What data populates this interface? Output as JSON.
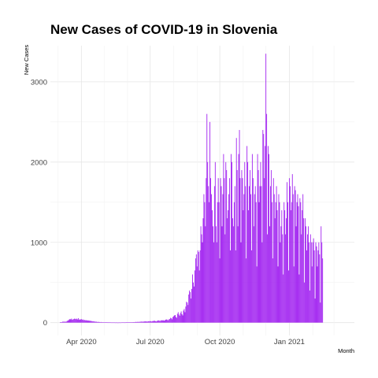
{
  "chart_data": {
    "type": "bar",
    "title": "New Cases of COVID-19 in Slovenia",
    "xlabel": "Month",
    "ylabel": "New Cases",
    "bar_color": "#a020f0",
    "x_start": "2020-03-04",
    "x_range": [
      "2020-02-20",
      "2021-03-28"
    ],
    "ylim": [
      -160,
      3450
    ],
    "y_ticks": [
      0,
      1000,
      2000,
      3000
    ],
    "x_ticks": [
      {
        "date": "2020-04-01",
        "label": "Apr 2020"
      },
      {
        "date": "2020-07-01",
        "label": "Jul 2020"
      },
      {
        "date": "2020-10-01",
        "label": "Oct 2020"
      },
      {
        "date": "2021-01-01",
        "label": "Jan 2021"
      }
    ],
    "grid": true,
    "values": [
      6,
      6,
      6,
      12,
      12,
      12,
      12,
      12,
      12,
      20,
      25,
      30,
      40,
      45,
      40,
      50,
      35,
      40,
      45,
      50,
      48,
      42,
      50,
      40,
      55,
      35,
      42,
      38,
      45,
      35,
      40,
      30,
      35,
      28,
      32,
      25,
      30,
      22,
      28,
      20,
      25,
      18,
      20,
      15,
      18,
      12,
      15,
      10,
      12,
      8,
      10,
      8,
      8,
      6,
      8,
      6,
      6,
      5,
      5,
      4,
      5,
      3,
      4,
      2,
      3,
      2,
      3,
      2,
      2,
      2,
      2,
      2,
      2,
      1,
      2,
      1,
      1,
      1,
      2,
      1,
      2,
      2,
      3,
      2,
      3,
      2,
      2,
      3,
      4,
      3,
      4,
      3,
      5,
      4,
      5,
      6,
      6,
      7,
      6,
      8,
      9,
      8,
      10,
      8,
      11,
      9,
      12,
      12,
      14,
      10,
      12,
      15,
      13,
      16,
      14,
      12,
      15,
      18,
      15,
      20,
      17,
      14,
      18,
      22,
      20,
      24,
      18,
      15,
      22,
      25,
      28,
      24,
      20,
      28,
      30,
      26,
      32,
      25,
      24,
      35,
      38,
      40,
      32,
      30,
      42,
      45,
      60,
      55,
      42,
      70,
      80,
      90,
      95,
      70,
      60,
      110,
      130,
      100,
      85,
      120,
      140,
      105,
      90,
      150,
      170,
      130,
      200,
      260,
      250,
      220,
      350,
      400,
      380,
      300,
      420,
      600,
      500,
      450,
      650,
      800,
      850,
      700,
      900,
      880,
      650,
      900,
      1200,
      1100,
      1000,
      1300,
      1600,
      1500,
      1200,
      1800,
      2600,
      2000,
      1700,
      1500,
      2500,
      1800,
      1600,
      1400,
      1200,
      1000,
      1700,
      2000,
      1200,
      1000,
      1500,
      1800,
      1500,
      800,
      1800,
      1700,
      1200,
      1600,
      2100,
      1800,
      1100,
      2000,
      1900,
      1300,
      1400,
      1600,
      1800,
      900,
      2100,
      2000,
      1300,
      1200,
      1500,
      1700,
      900,
      2300,
      1900,
      1200,
      2100,
      2400,
      1800,
      1000,
      1900,
      1800,
      1400,
      1600,
      2000,
      1700,
      800,
      2200,
      2000,
      1400,
      1700,
      1900,
      1600,
      900,
      2100,
      1800,
      1200,
      1600,
      1700,
      1500,
      700,
      2100,
      1900,
      1500,
      1700,
      2000,
      1700,
      1000,
      2400,
      2350,
      1800,
      2200,
      3350,
      2600,
      1100,
      2200,
      2100,
      1200,
      1700,
      1900,
      1500,
      800,
      1800,
      1600,
      1300,
      1500,
      1700,
      1400,
      700,
      1600,
      1500,
      1000,
      1200,
      1400,
      1100,
      600,
      1500,
      1400,
      1100,
      1300,
      1750,
      1500,
      650,
      1800,
      1700,
      1400,
      1500,
      1850,
      1600,
      700,
      1700,
      1650,
      1200,
      1500,
      1600,
      1450,
      600,
      1550,
      1500,
      1100,
      1400,
      1600,
      1300,
      500,
      1300,
      1200,
      900,
      1100,
      1200,
      1000,
      400,
      1100,
      1000,
      700,
      1000,
      1050,
      900,
      300,
      1000,
      950,
      700,
      900,
      1000,
      850,
      250,
      1200,
      1000,
      800
    ]
  }
}
